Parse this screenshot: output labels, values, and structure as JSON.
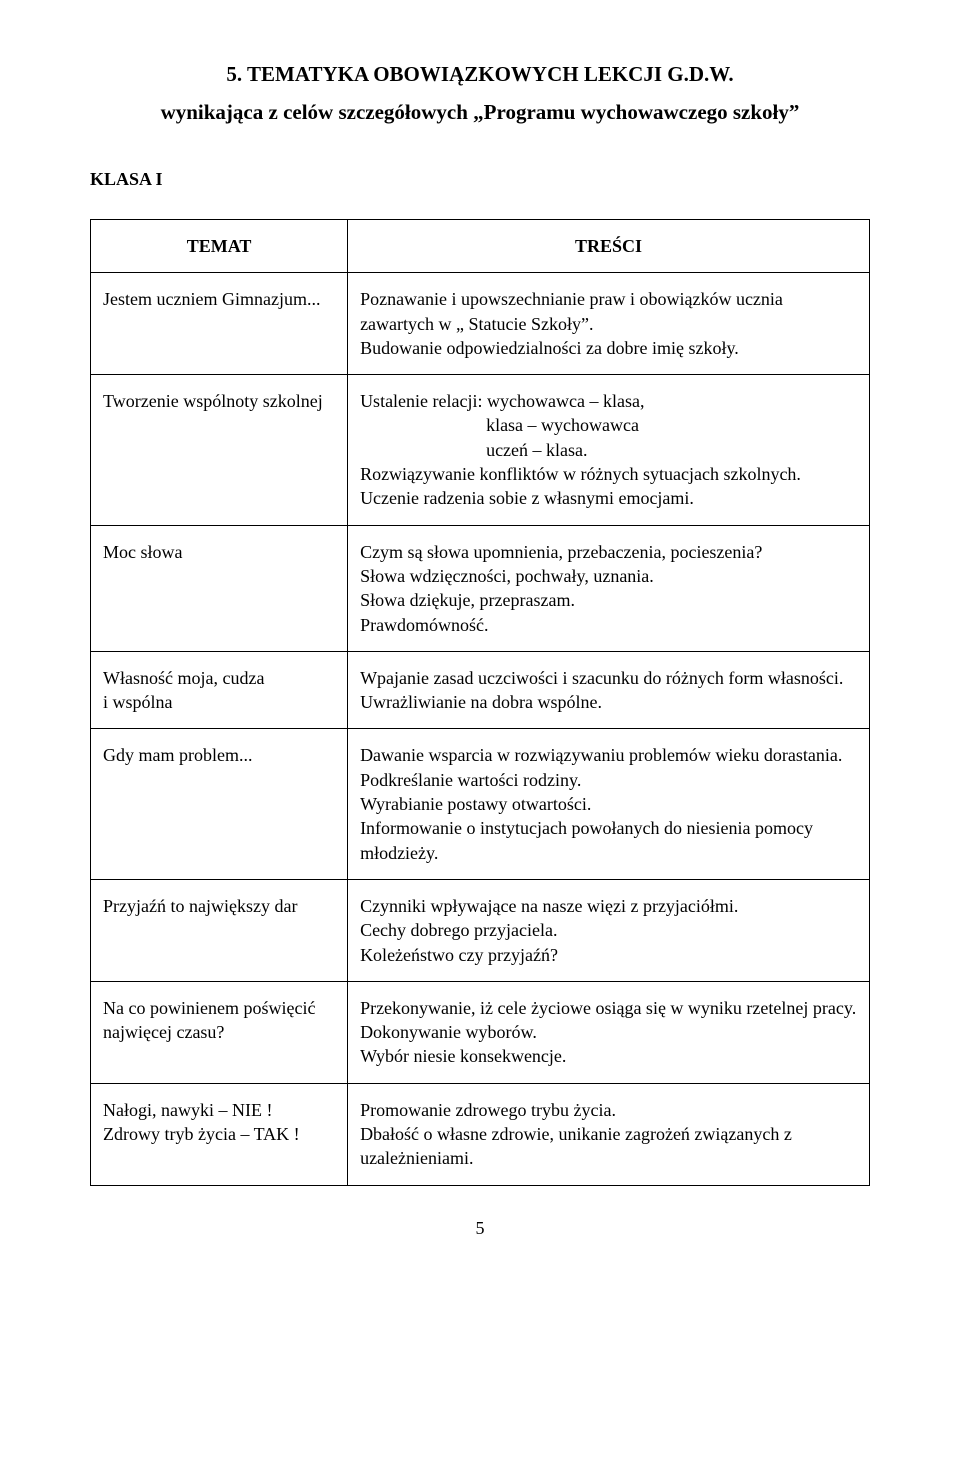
{
  "heading": {
    "title": "5. TEMATYKA  OBOWIĄZKOWYCH  LEKCJI  G.D.W.",
    "subtitle": "wynikająca z celów szczegółowych „Programu wychowawczego szkoły”",
    "klasa": "KLASA  I"
  },
  "table": {
    "headers": {
      "temat": "TEMAT",
      "tresci": "TREŚCI"
    },
    "rows": [
      {
        "temat": "Jestem  uczniem Gimnazjum...",
        "tresci": "Poznawanie i upowszechnianie praw i obowiązków ucznia zawartych w „ Statucie Szkoły”.\nBudowanie odpowiedzialności za dobre imię szkoły.",
        "tresci_format": "justify"
      },
      {
        "temat": "Tworzenie wspólnoty szkolnej",
        "tresci": "Ustalenie relacji: wychowawca – klasa,\n                            klasa – wychowawca\n                            uczeń – klasa.\nRozwiązywanie konfliktów w różnych sytuacjach szkolnych.\nUczenie radzenia sobie z własnymi emocjami.",
        "tresci_format": "left"
      },
      {
        "temat": "Moc słowa",
        "tresci": "Czym są słowa upomnienia, przebaczenia, pocieszenia?\nSłowa wdzięczności, pochwały,  uznania.\nSłowa dziękuje, przepraszam.\nPrawdomówność.",
        "tresci_format": "left"
      },
      {
        "temat": "Własność moja, cudza\ni wspólna",
        "tresci": "Wpajanie zasad uczciwości i szacunku do różnych form własności.\nUwrażliwianie na dobra wspólne.",
        "tresci_format": "justify"
      },
      {
        "temat": "Gdy mam problem...",
        "tresci": "Dawanie wsparcia w rozwiązywaniu problemów wieku dorastania.\nPodkreślanie wartości rodziny.\nWyrabianie postawy otwartości.\nInformowanie o instytucjach powołanych do niesienia pomocy młodzieży.",
        "tresci_format": "justify"
      },
      {
        "temat": "Przyjaźń to największy dar",
        "tresci": "Czynniki wpływające na nasze więzi z przyjaciółmi.\nCechy dobrego przyjaciela.\nKoleżeństwo czy przyjaźń?",
        "tresci_format": "left"
      },
      {
        "temat": "Na co powinienem poświęcić najwięcej czasu?",
        "tresci": "Przekonywanie, iż cele życiowe osiąga się w wyniku rzetelnej pracy.\nDokonywanie wyborów.\nWybór niesie konsekwencje.",
        "tresci_format": "justify"
      },
      {
        "temat": "Nałogi, nawyki – NIE !\nZdrowy tryb życia – TAK !",
        "tresci": "Promowanie zdrowego trybu życia.\nDbałość o własne zdrowie, unikanie zagrożeń związanych z uzależnieniami.",
        "tresci_format": "justify"
      }
    ]
  },
  "page_number": "5"
}
